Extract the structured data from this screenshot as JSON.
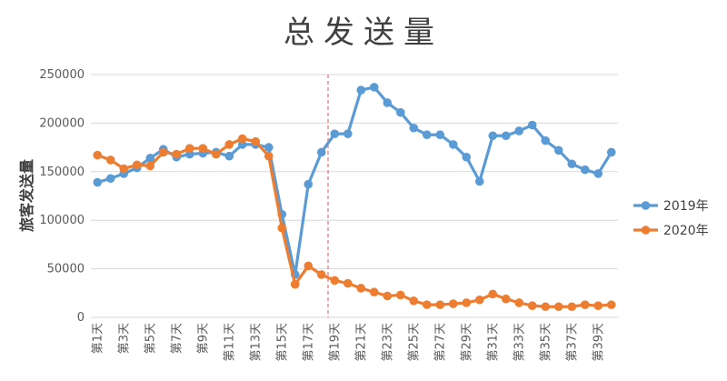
{
  "chart_data": {
    "type": "line",
    "title": "总发送量",
    "ylabel": "旅客发送量",
    "xlabel": "",
    "ylim": [
      0,
      250000
    ],
    "yticks": [
      0,
      50000,
      100000,
      150000,
      200000,
      250000
    ],
    "grid": "horizontal",
    "legend_position": "right",
    "categories": [
      "第1天",
      "第2天",
      "第3天",
      "第4天",
      "第5天",
      "第6天",
      "第7天",
      "第8天",
      "第9天",
      "第10天",
      "第11天",
      "第12天",
      "第13天",
      "第14天",
      "第15天",
      "第16天",
      "第17天",
      "第18天",
      "第19天",
      "第20天",
      "第21天",
      "第22天",
      "第23天",
      "第24天",
      "第25天",
      "第26天",
      "第27天",
      "第28天",
      "第29天",
      "第30天",
      "第31天",
      "第32天",
      "第33天",
      "第34天",
      "第35天",
      "第36天",
      "第37天",
      "第38天",
      "第39天",
      "第40天"
    ],
    "x_tick_labels": [
      "第1天",
      "第3天",
      "第5天",
      "第7天",
      "第9天",
      "第11天",
      "第13天",
      "第15天",
      "第17天",
      "第19天",
      "第21天",
      "第23天",
      "第25天",
      "第27天",
      "第29天",
      "第31天",
      "第33天",
      "第35天",
      "第37天",
      "第39天"
    ],
    "marker_line_day": 18.5,
    "series": [
      {
        "name": "2019年",
        "color": "#5b9bd5",
        "values": [
          139000,
          143000,
          148000,
          154000,
          164000,
          173000,
          165000,
          168000,
          169000,
          170000,
          166000,
          178000,
          178000,
          175000,
          106000,
          44000,
          137000,
          170000,
          189000,
          189000,
          234000,
          237000,
          221000,
          211000,
          195000,
          188000,
          188000,
          178000,
          165000,
          140000,
          187000,
          187000,
          192000,
          198000,
          182000,
          172000,
          158000,
          152000,
          148000,
          170000
        ]
      },
      {
        "name": "2020年",
        "color": "#ed7d31",
        "values": [
          167000,
          162000,
          153000,
          157000,
          156000,
          170000,
          168000,
          174000,
          174000,
          168000,
          178000,
          184000,
          181000,
          166000,
          92000,
          34000,
          53000,
          44000,
          38000,
          35000,
          30000,
          26000,
          22000,
          23000,
          17000,
          13000,
          13000,
          14000,
          15000,
          18000,
          24000,
          19000,
          15000,
          12000,
          11000,
          11000,
          11000,
          13000,
          12000,
          13000
        ]
      }
    ]
  }
}
